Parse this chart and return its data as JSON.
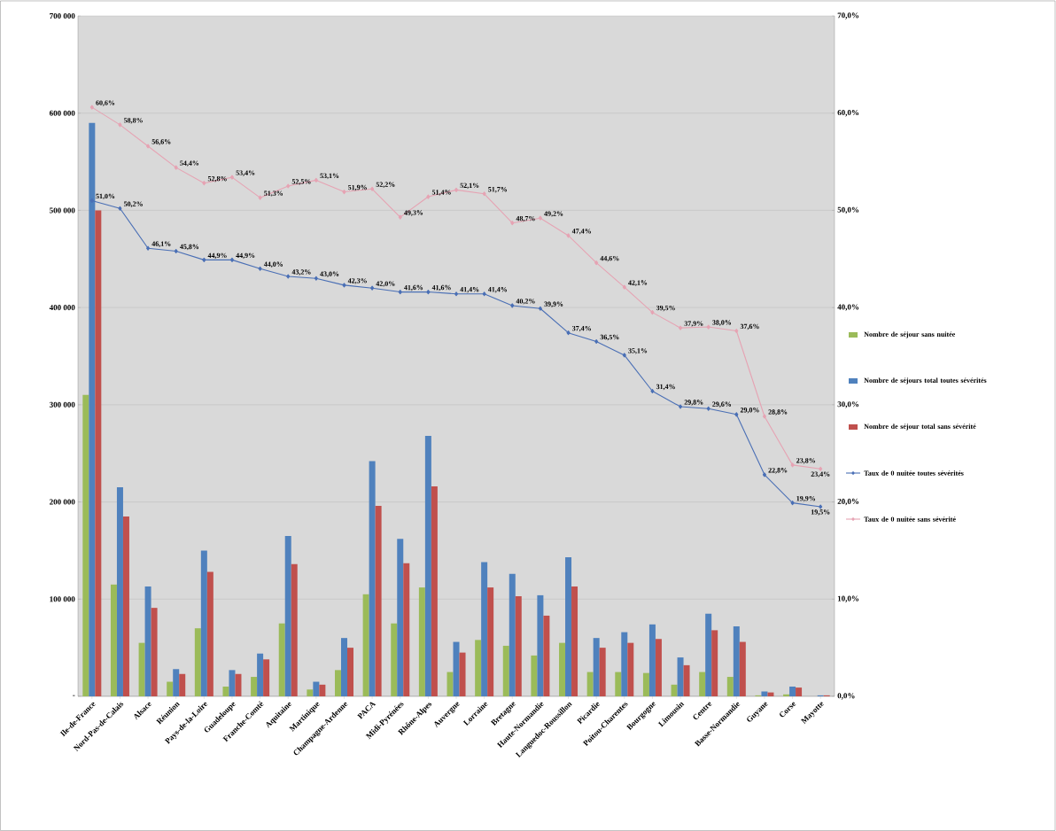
{
  "chart_data": {
    "type": "bar",
    "categories": [
      "Ile-de-France",
      "Nord-Pas-de-Calais",
      "Alsace",
      "Réunion",
      "Pays-de-la-Loire",
      "Guadeloupe",
      "Franche-Comté",
      "Aquitaine",
      "Martinique",
      "Champagne-Ardenne",
      "PACA",
      "Midi-Pyrénées",
      "Rhône-Alpes",
      "Auvergne",
      "Lorraine",
      "Bretagne",
      "Haute-Normandie",
      "Languedoc-Roussillon",
      "Picardie",
      "Poitou-Charentes",
      "Bourgogne",
      "Limousin",
      "Centre",
      "Basse-Normandie",
      "Guyane",
      "Corse",
      "Mayotte"
    ],
    "series": [
      {
        "name": "Nombre de séjour sans nuitée",
        "color": "#9bbb59",
        "values": [
          310000,
          115000,
          55000,
          15000,
          70000,
          10000,
          20000,
          75000,
          7000,
          27000,
          105000,
          75000,
          112000,
          25000,
          58000,
          52000,
          42000,
          55000,
          25000,
          25000,
          24000,
          12000,
          25000,
          20000,
          1000,
          2000,
          0
        ]
      },
      {
        "name": "Nombre de séjours total toutes sévérités",
        "color": "#4f81bd",
        "values": [
          590000,
          215000,
          113000,
          28000,
          150000,
          27000,
          44000,
          165000,
          15000,
          60000,
          242000,
          162000,
          268000,
          56000,
          138000,
          126000,
          104000,
          143000,
          60000,
          66000,
          74000,
          40000,
          85000,
          72000,
          5000,
          10000,
          1000
        ]
      },
      {
        "name": "Nombre de séjour total sans sévérité",
        "color": "#c0504d",
        "values": [
          500000,
          185000,
          91000,
          23000,
          128000,
          23000,
          38000,
          136000,
          12000,
          50000,
          196000,
          137000,
          216000,
          45000,
          112000,
          103000,
          83000,
          113000,
          50000,
          55000,
          59000,
          32000,
          68000,
          56000,
          4000,
          9000,
          1000
        ]
      },
      {
        "name": "Taux de 0 nuitée toutes sévérités",
        "type": "line",
        "axis": "y2",
        "color": "#4a6fb5",
        "values": [
          51.0,
          50.2,
          46.1,
          45.8,
          44.9,
          44.9,
          44.0,
          43.2,
          43.0,
          42.3,
          42.0,
          41.6,
          41.6,
          41.4,
          41.4,
          40.2,
          39.9,
          37.4,
          36.5,
          35.1,
          31.4,
          29.8,
          29.6,
          29.0,
          22.8,
          19.9,
          19.5
        ],
        "value_labels": [
          "51,0%",
          "50,2%",
          "46,1%",
          "45,8%",
          "44,9%",
          "44,9%",
          "44,0%",
          "43,2%",
          "43,0%",
          "42,3%",
          "42,0%",
          "41,6%",
          "41,6%",
          "41,4%",
          "41,4%",
          "40,2%",
          "39,9%",
          "37,4%",
          "36,5%",
          "35,1%",
          "31,4%",
          "29,8%",
          "29,6%",
          "29,0%",
          "22,8%",
          "19,9%",
          "19,5%"
        ]
      },
      {
        "name": "Taux de 0 nuitée sans sévérité",
        "type": "line",
        "axis": "y2",
        "color": "#e6a3b3",
        "values": [
          60.6,
          58.8,
          56.6,
          54.4,
          52.8,
          53.4,
          51.3,
          52.5,
          53.1,
          51.9,
          52.2,
          49.3,
          51.4,
          52.1,
          51.7,
          48.7,
          49.2,
          47.4,
          44.6,
          42.1,
          39.5,
          37.9,
          38.0,
          37.6,
          28.8,
          23.8,
          23.4
        ],
        "value_labels": [
          "60,6%",
          "58,8%",
          "56,6%",
          "54,4%",
          "52,8%",
          "53,4%",
          "51,3%",
          "52,5%",
          "53,1%",
          "51,9%",
          "52,2%",
          "49,3%",
          "51,4%",
          "52,1%",
          "51,7%",
          "48,7%",
          "49,2%",
          "47,4%",
          "44,6%",
          "42,1%",
          "39,5%",
          "37,9%",
          "38,0%",
          "37,6%",
          "28,8%",
          "23,8%",
          "23,4%"
        ]
      }
    ],
    "ylim": [
      0,
      700000
    ],
    "yticks": [
      {
        "value": 0,
        "label": "-"
      },
      {
        "value": 100000,
        "label": "100 000"
      },
      {
        "value": 200000,
        "label": "200 000"
      },
      {
        "value": 300000,
        "label": "300 000"
      },
      {
        "value": 400000,
        "label": "400 000"
      },
      {
        "value": 500000,
        "label": "500 000"
      },
      {
        "value": 600000,
        "label": "600 000"
      },
      {
        "value": 700000,
        "label": "700 000"
      }
    ],
    "y2lim": [
      0,
      70
    ],
    "y2ticks": [
      {
        "value": 0,
        "label": "0,0%"
      },
      {
        "value": 10,
        "label": "10,0%"
      },
      {
        "value": 20,
        "label": "20,0%"
      },
      {
        "value": 30,
        "label": "30,0%"
      },
      {
        "value": 40,
        "label": "40,0%"
      },
      {
        "value": 50,
        "label": "50,0%"
      },
      {
        "value": 60,
        "label": "60,0%"
      },
      {
        "value": 70,
        "label": "70,0%"
      }
    ],
    "grid": "y",
    "legend": "right",
    "marker": "diamond"
  }
}
